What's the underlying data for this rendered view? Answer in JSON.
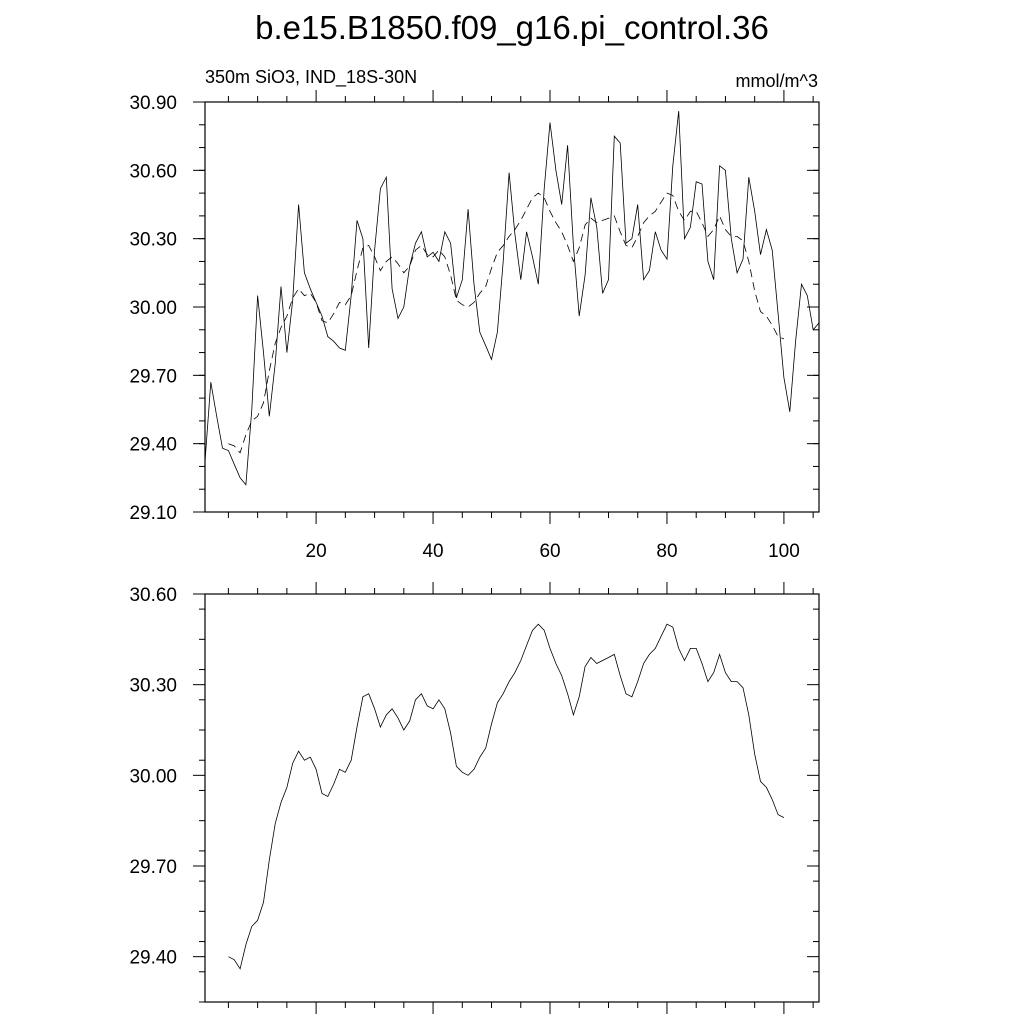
{
  "page": {
    "title": "b.e15.B1850.f09_g16.pi_control.36"
  },
  "chart_data": [
    {
      "type": "line",
      "left_label": "350m SiO3, IND_18S-30N",
      "right_label": "mmol/m^3",
      "xlim": [
        1,
        106
      ],
      "ylim": [
        29.1,
        30.9
      ],
      "x_ticks": [
        20,
        40,
        60,
        80,
        100
      ],
      "y_ticks": [
        29.1,
        29.4,
        29.7,
        30.0,
        30.3,
        30.6,
        30.9
      ],
      "y_tick_labels": [
        "29.10",
        "29.40",
        "29.70",
        "30.00",
        "30.30",
        "30.60",
        "30.90"
      ],
      "x_tick_labels": [
        "20",
        "40",
        "60",
        "80",
        "100"
      ],
      "grid": false,
      "series": [
        {
          "style": "solid",
          "x_start": 1,
          "values": [
            29.32,
            29.67,
            29.52,
            29.38,
            29.37,
            29.31,
            29.25,
            29.22,
            29.55,
            30.05,
            29.8,
            29.52,
            29.75,
            30.09,
            29.8,
            30.03,
            30.45,
            30.15,
            30.08,
            30.02,
            29.96,
            29.87,
            29.85,
            29.82,
            29.81,
            30.05,
            30.38,
            30.3,
            29.82,
            30.25,
            30.52,
            30.57,
            30.08,
            29.95,
            30.0,
            30.18,
            30.28,
            30.33,
            30.22,
            30.24,
            30.2,
            30.33,
            30.28,
            30.04,
            30.12,
            30.43,
            30.1,
            29.89,
            29.83,
            29.77,
            29.89,
            30.2,
            30.59,
            30.32,
            30.12,
            30.33,
            30.22,
            30.1,
            30.52,
            30.81,
            30.6,
            30.45,
            30.71,
            30.27,
            29.96,
            30.14,
            30.48,
            30.35,
            30.06,
            30.12,
            30.75,
            30.72,
            30.28,
            30.3,
            30.45,
            30.12,
            30.16,
            30.33,
            30.25,
            30.21,
            30.62,
            30.86,
            30.3,
            30.35,
            30.55,
            30.54,
            30.2,
            30.12,
            30.62,
            30.6,
            30.3,
            30.15,
            30.21,
            30.57,
            30.42,
            30.23,
            30.34,
            30.25,
            29.97,
            29.69,
            29.54,
            29.85,
            30.1,
            30.05,
            29.9,
            29.93
          ]
        },
        {
          "style": "dashed",
          "x_start": 5,
          "values": [
            29.4,
            29.39,
            29.36,
            29.44,
            29.5,
            29.52,
            29.58,
            29.72,
            29.84,
            29.91,
            29.96,
            30.04,
            30.08,
            30.05,
            30.06,
            30.02,
            29.94,
            29.93,
            29.97,
            30.02,
            30.01,
            30.05,
            30.16,
            30.26,
            30.27,
            30.22,
            30.16,
            30.2,
            30.22,
            30.19,
            30.15,
            30.18,
            30.25,
            30.27,
            30.23,
            30.22,
            30.25,
            30.22,
            30.14,
            30.03,
            30.01,
            30.0,
            30.02,
            30.06,
            30.09,
            30.17,
            30.24,
            30.27,
            30.31,
            30.34,
            30.38,
            30.43,
            30.48,
            30.5,
            30.48,
            30.42,
            30.37,
            30.33,
            30.27,
            30.2,
            30.26,
            30.36,
            30.39,
            30.37,
            30.38,
            30.39,
            30.4,
            30.33,
            30.27,
            30.26,
            30.31,
            30.37,
            30.4,
            30.42,
            30.46,
            30.5,
            30.49,
            30.42,
            30.38,
            30.42,
            30.42,
            30.37,
            30.31,
            30.34,
            30.4,
            30.34,
            30.31,
            30.31,
            30.29,
            30.2,
            30.07,
            29.98,
            29.96,
            29.92,
            29.87,
            29.86
          ]
        }
      ]
    },
    {
      "type": "line",
      "xlim": [
        1,
        106
      ],
      "ylim": [
        29.25,
        30.6
      ],
      "x_ticks": [
        20,
        40,
        60,
        80,
        100
      ],
      "y_ticks": [
        29.4,
        29.7,
        30.0,
        30.3,
        30.6
      ],
      "y_tick_labels": [
        "29.40",
        "29.70",
        "30.00",
        "30.30",
        "30.60"
      ],
      "grid": false,
      "series": [
        {
          "style": "solid",
          "x_start": 5,
          "values": [
            29.4,
            29.39,
            29.36,
            29.44,
            29.5,
            29.52,
            29.58,
            29.72,
            29.84,
            29.91,
            29.96,
            30.04,
            30.08,
            30.05,
            30.06,
            30.02,
            29.94,
            29.93,
            29.97,
            30.02,
            30.01,
            30.05,
            30.16,
            30.26,
            30.27,
            30.22,
            30.16,
            30.2,
            30.22,
            30.19,
            30.15,
            30.18,
            30.25,
            30.27,
            30.23,
            30.22,
            30.25,
            30.22,
            30.14,
            30.03,
            30.01,
            30.0,
            30.02,
            30.06,
            30.09,
            30.17,
            30.24,
            30.27,
            30.31,
            30.34,
            30.38,
            30.43,
            30.48,
            30.5,
            30.48,
            30.42,
            30.37,
            30.33,
            30.27,
            30.2,
            30.26,
            30.36,
            30.39,
            30.37,
            30.38,
            30.39,
            30.4,
            30.33,
            30.27,
            30.26,
            30.31,
            30.37,
            30.4,
            30.42,
            30.46,
            30.5,
            30.49,
            30.42,
            30.38,
            30.42,
            30.42,
            30.37,
            30.31,
            30.34,
            30.4,
            30.34,
            30.31,
            30.31,
            30.29,
            30.2,
            30.07,
            29.98,
            29.96,
            29.92,
            29.87,
            29.86
          ]
        }
      ]
    }
  ]
}
